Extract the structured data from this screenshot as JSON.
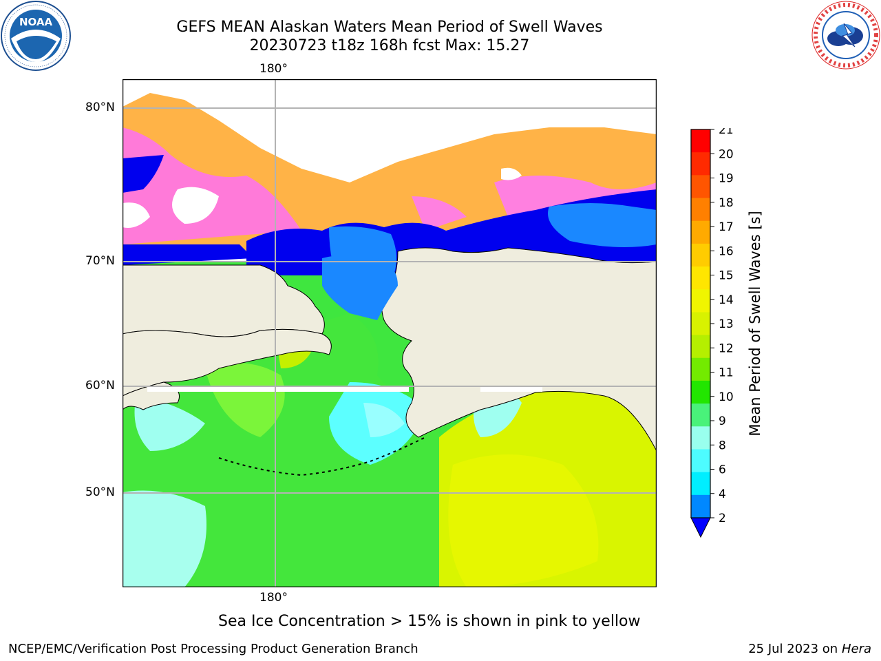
{
  "title_line1": "GEFS MEAN Alaskan Waters Mean Period of Swell Waves",
  "title_line2": "20230723 t18z 168h fcst   Max: 15.27",
  "logos": {
    "left": "noaa-logo",
    "right": "national-weather-service-logo"
  },
  "map": {
    "lon_label_top": "180°",
    "lon_label_bottom": "180°",
    "lat_labels": [
      "80°N",
      "70°N",
      "60°N",
      "50°N"
    ],
    "land_color": "#efedde",
    "grid_color": "#b3b3b3"
  },
  "colorbar": {
    "label": "Mean Period of Swell Waves [s]",
    "ticks": [
      "21",
      "20",
      "19",
      "18",
      "17",
      "16",
      "15",
      "14",
      "13",
      "12",
      "11",
      "10",
      "9",
      "8",
      "6",
      "4",
      "2"
    ],
    "colors": [
      "#ff0000",
      "#ff2a00",
      "#ff5500",
      "#ff8000",
      "#ffaa00",
      "#ffcc00",
      "#ffe600",
      "#f0f500",
      "#d8f200",
      "#b5ef00",
      "#73eb00",
      "#22e600",
      "#49f27a",
      "#99ffee",
      "#4dfcff",
      "#00eeff",
      "#0088ff"
    ],
    "extend_color": "#0000ff"
  },
  "note": "Sea Ice Concentration > 15% is shown in pink to yellow",
  "footer_left": "NCEP/EMC/Verification Post Processing Product Generation Branch",
  "footer_date": "25 Jul 2023 on ",
  "footer_machine": "Hera"
}
